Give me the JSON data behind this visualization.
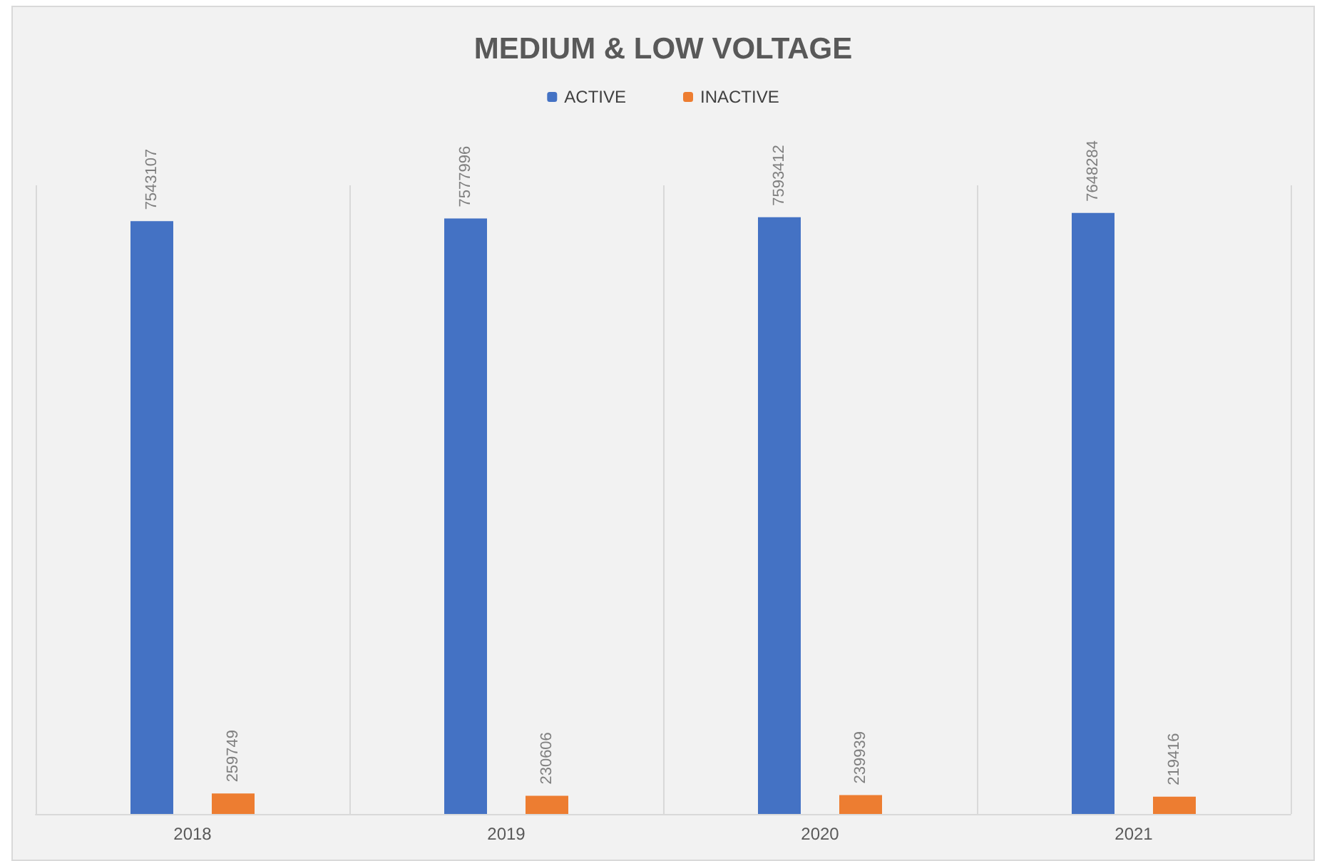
{
  "chart_data": {
    "type": "bar",
    "title": "MEDIUM & LOW VOLTAGE",
    "categories": [
      "2018",
      "2019",
      "2020",
      "2021"
    ],
    "series": [
      {
        "name": "ACTIVE",
        "color": "#4472c4",
        "values": [
          7543107,
          7577996,
          7593412,
          7648284
        ]
      },
      {
        "name": "INACTIVE",
        "color": "#ed7d31",
        "values": [
          259749,
          230606,
          239939,
          219416
        ]
      }
    ],
    "data_labels": true,
    "grid": "x",
    "legend": "top"
  }
}
